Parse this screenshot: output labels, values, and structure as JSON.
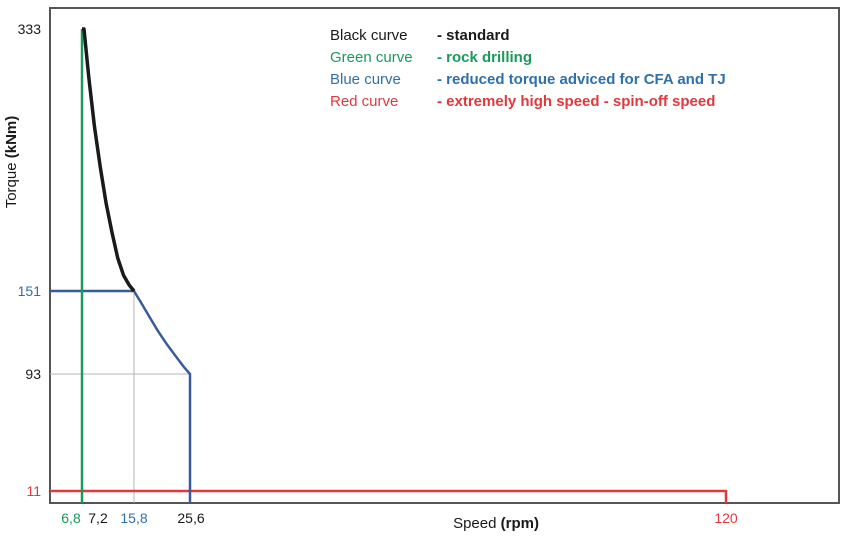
{
  "chart_data": {
    "type": "line",
    "title": "",
    "xlabel": {
      "text": "Speed",
      "unit": "(rpm)"
    },
    "ylabel": {
      "text": "Torque",
      "unit": "(kNm)"
    },
    "x_ticks": [
      {
        "label": "6,8",
        "value": 6.8,
        "color": "#1a9a5a"
      },
      {
        "label": "7,2",
        "value": 7.2,
        "color": "#1a1a1a"
      },
      {
        "label": "15,8",
        "value": 15.8,
        "color": "#2f6fae"
      },
      {
        "label": "25,6",
        "value": 25.6,
        "color": "#1a1a1a"
      },
      {
        "label": "120",
        "value": 120,
        "color": "#e0383e"
      }
    ],
    "y_ticks": [
      {
        "label": "333",
        "value": 333,
        "color": "#1a1a1a"
      },
      {
        "label": "151",
        "value": 151,
        "color": "#2f6fae"
      },
      {
        "label": "93",
        "value": 93,
        "color": "#1a1a1a"
      },
      {
        "label": "11",
        "value": 11,
        "color": "#e0383e"
      }
    ],
    "grid": false,
    "legend_placement": "top-center",
    "series": [
      {
        "name": "Black curve",
        "description": "- standard",
        "color": "#1a1a1a",
        "points": [
          [
            6.8,
            333
          ],
          [
            7.2,
            333
          ],
          [
            8,
            300
          ],
          [
            9,
            265
          ],
          [
            10,
            237
          ],
          [
            11,
            212
          ],
          [
            12,
            192
          ],
          [
            13,
            174
          ],
          [
            14,
            162
          ],
          [
            15,
            155
          ],
          [
            15.8,
            151
          ]
        ]
      },
      {
        "name": "Green curve",
        "description": "- rock drilling",
        "color": "#1a9a5a",
        "points": [
          [
            6.8,
            0
          ],
          [
            6.8,
            333
          ]
        ]
      },
      {
        "name": "Blue curve",
        "description": "- reduced torque adviced for CFA and TJ",
        "color": "#3a5a9a",
        "points": [
          [
            0,
            151
          ],
          [
            15.8,
            151
          ],
          [
            17,
            143
          ],
          [
            18.5,
            133
          ],
          [
            20,
            123
          ],
          [
            21.5,
            114
          ],
          [
            23,
            106
          ],
          [
            24.5,
            98
          ],
          [
            25.6,
            93
          ],
          [
            25.6,
            0
          ]
        ]
      },
      {
        "name": "Red curve",
        "description": "- extremely high speed - spin-off speed",
        "color": "#e0383e",
        "points": [
          [
            0,
            11
          ],
          [
            120,
            11
          ],
          [
            120,
            0
          ]
        ]
      }
    ],
    "reference_lines": [
      {
        "orientation": "vertical",
        "value": 15.8,
        "from": 0,
        "to": 151
      },
      {
        "orientation": "horizontal",
        "value": 93,
        "from": 0,
        "to": 25.6
      }
    ]
  }
}
